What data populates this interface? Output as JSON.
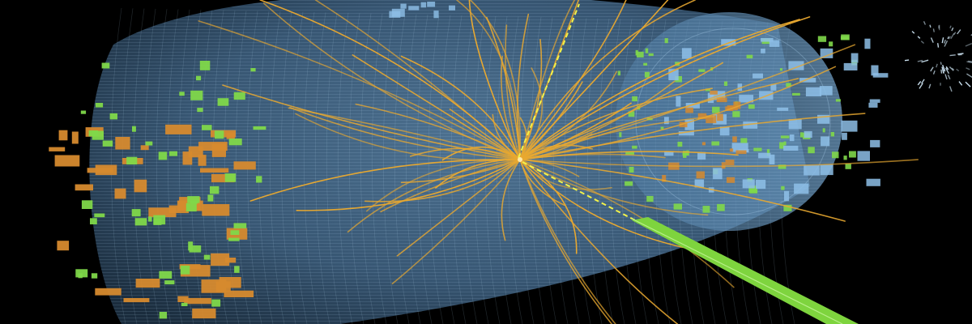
{
  "image": {
    "palette": {
      "background": "#000000",
      "detector_fill": "#6f9fc6",
      "detector_mesh": "#9cc4e4",
      "tracks": "#e8a830",
      "calo_orange": "#d68a2e",
      "calo_green": "#7fd84a",
      "calo_blue": "#8ec0e8",
      "photon_dashed": "#f2f24a",
      "green_beam": "#7ed43e"
    }
  }
}
